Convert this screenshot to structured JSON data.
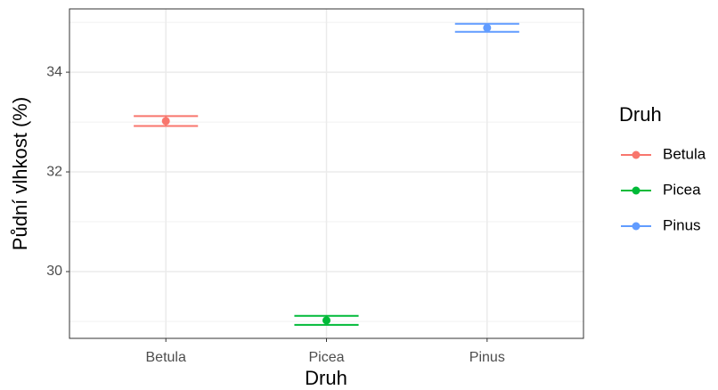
{
  "chart_data": {
    "type": "errorbar",
    "x_label": "Druh",
    "y_label": "Půdní vlhkost (%)",
    "categories": [
      "Betula",
      "Picea",
      "Pinus"
    ],
    "series": [
      {
        "name": "Betula",
        "color": "#F8766D",
        "values": [
          33.02,
          null,
          null
        ],
        "errors": [
          0.1,
          null,
          null
        ]
      },
      {
        "name": "Picea",
        "color": "#00BA38",
        "values": [
          null,
          29.02,
          null
        ],
        "errors": [
          null,
          0.09,
          null
        ]
      },
      {
        "name": "Pinus",
        "color": "#619CFF",
        "values": [
          null,
          null,
          34.89
        ],
        "errors": [
          null,
          null,
          0.08
        ]
      }
    ],
    "ylim": [
      28.66,
      35.27
    ],
    "yticks": [
      30,
      32,
      34
    ],
    "yminor": [
      29,
      31,
      33,
      35
    ],
    "grid": true,
    "legend_title": "Druh",
    "legend": "right"
  }
}
